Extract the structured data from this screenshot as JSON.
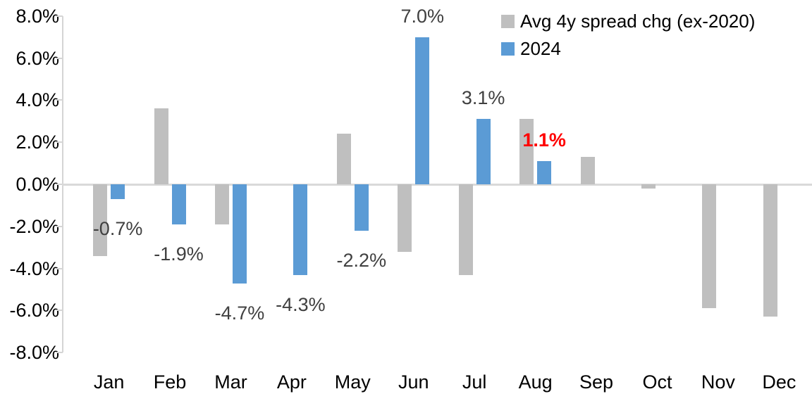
{
  "chart_data": {
    "type": "bar",
    "title": "",
    "categories": [
      "Jan",
      "Feb",
      "Mar",
      "Apr",
      "May",
      "Jun",
      "Jul",
      "Aug",
      "Sep",
      "Oct",
      "Nov",
      "Dec"
    ],
    "series": [
      {
        "name": "Avg 4y spread chg (ex-2020)",
        "color": "#BFBFBF",
        "values": [
          -3.4,
          3.6,
          -1.9,
          0.0,
          2.4,
          -3.2,
          -4.3,
          3.1,
          1.3,
          -0.2,
          -5.9,
          -6.3
        ]
      },
      {
        "name": "2024",
        "color": "#5B9BD5",
        "values": [
          -0.7,
          -1.9,
          -4.7,
          -4.3,
          -2.2,
          7.0,
          3.1,
          1.1,
          null,
          null,
          null,
          null
        ]
      }
    ],
    "data_labels": [
      {
        "category": "Jan",
        "text": "-0.7%",
        "color": "#404040",
        "bold": false
      },
      {
        "category": "Feb",
        "text": "-1.9%",
        "color": "#404040",
        "bold": false
      },
      {
        "category": "Mar",
        "text": "-4.7%",
        "color": "#404040",
        "bold": false
      },
      {
        "category": "Apr",
        "text": "-4.3%",
        "color": "#404040",
        "bold": false
      },
      {
        "category": "May",
        "text": "-2.2%",
        "color": "#404040",
        "bold": false
      },
      {
        "category": "Jun",
        "text": "7.0%",
        "color": "#404040",
        "bold": false
      },
      {
        "category": "Jul",
        "text": "3.1%",
        "color": "#404040",
        "bold": false
      },
      {
        "category": "Aug",
        "text": "1.1%",
        "color": "#FF0000",
        "bold": true
      }
    ],
    "y_tick_labels": [
      "8.0%",
      "6.0%",
      "4.0%",
      "2.0%",
      "0.0%",
      "-2.0%",
      "-4.0%",
      "-6.0%",
      "-8.0%"
    ],
    "ylim": [
      -8,
      8
    ],
    "y_tick_step": 2,
    "gridlines": "zero-line-only",
    "legend_position": "top-right",
    "axis_color": "#D5D5D5",
    "data_label_color": "#404040",
    "highlight_color": "#FF0000"
  }
}
